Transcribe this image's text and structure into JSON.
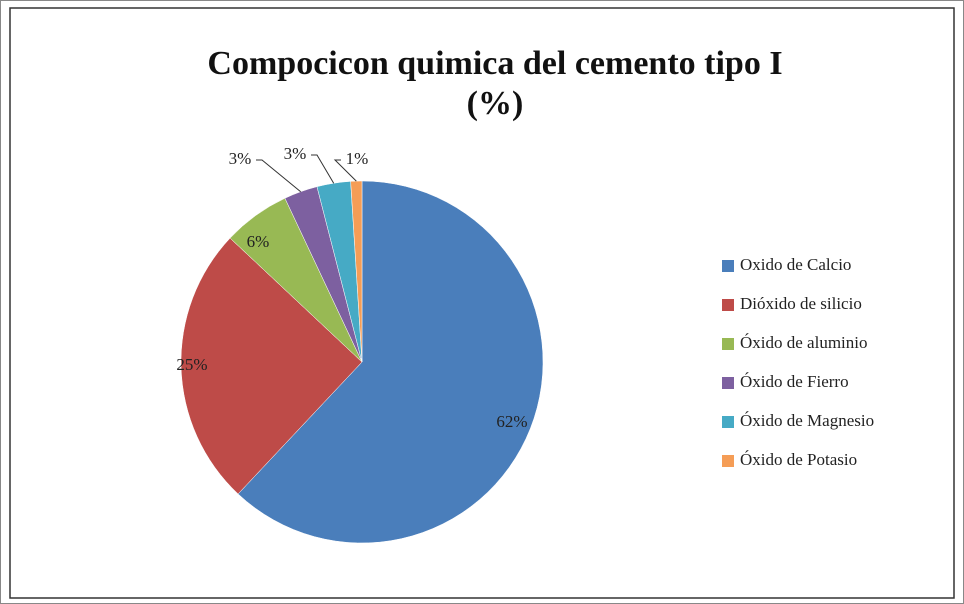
{
  "chart_data": {
    "type": "pie",
    "title": [
      "Compocicon quimica del cemento  tipo I",
      "(%)"
    ],
    "categories": [
      "Oxido de Calcio",
      "Dióxido de silicio",
      "Óxido de aluminio",
      "Óxido de Fierro",
      "Óxido de Magnesio",
      "Óxido de Potasio"
    ],
    "values": [
      62,
      25,
      6,
      3,
      3,
      1
    ],
    "value_labels": [
      "62%",
      "25%",
      "6%",
      "3%",
      "3%",
      "1%"
    ],
    "colors": [
      "#4a7ebb",
      "#be4b48",
      "#98b954",
      "#7d60a0",
      "#46aac5",
      "#f59d56"
    ],
    "legend": "right"
  }
}
